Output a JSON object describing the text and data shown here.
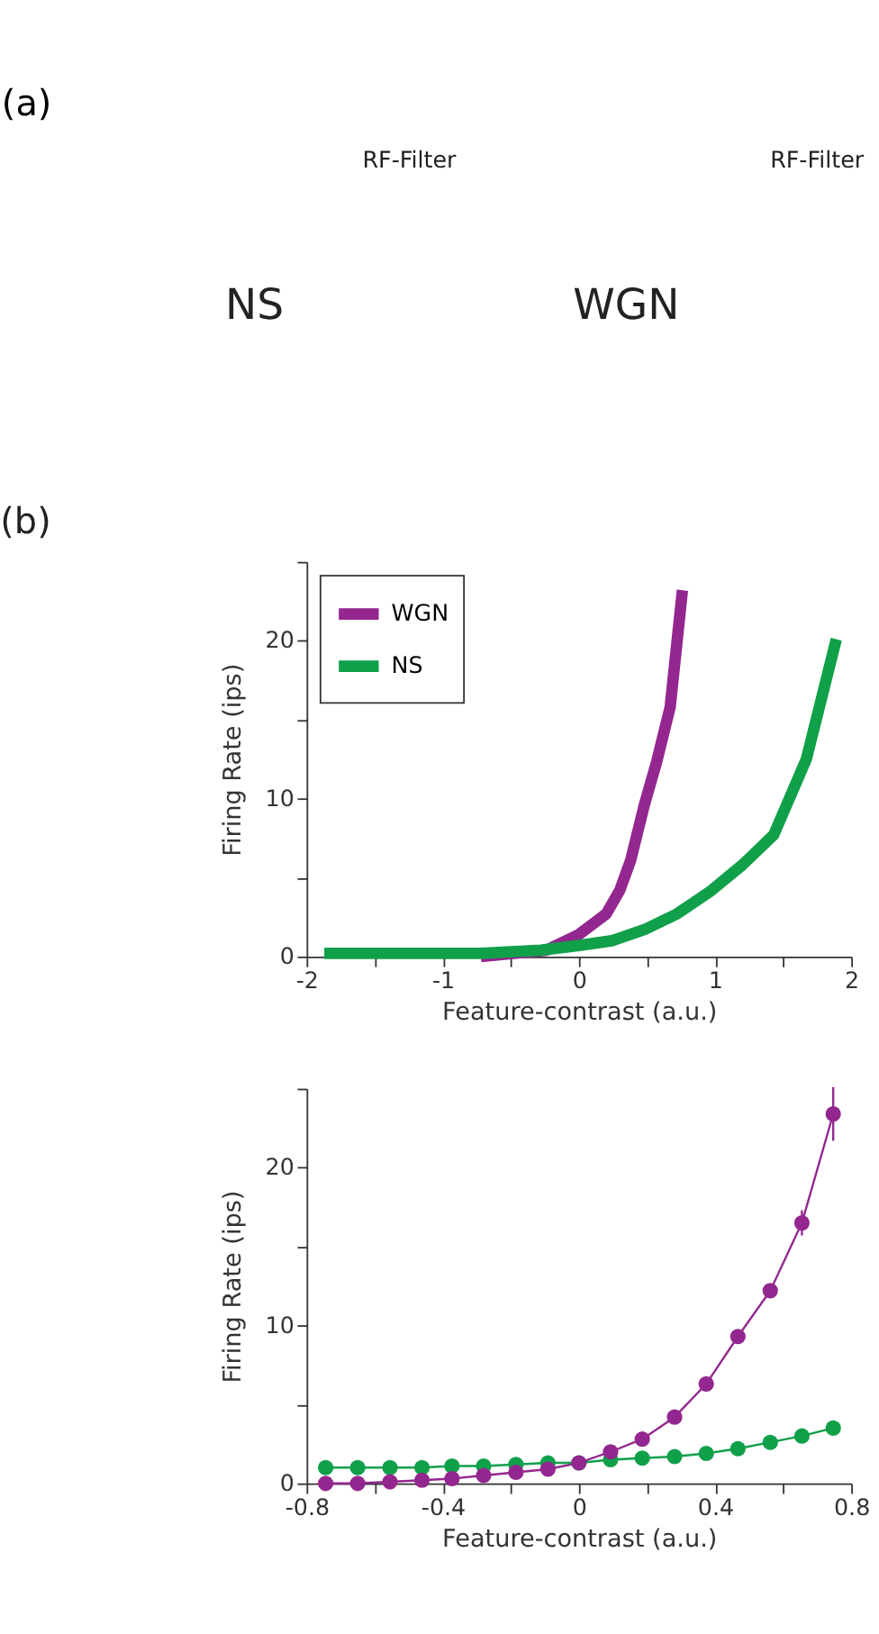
{
  "chart_data": [
    {
      "type": "other",
      "title": "(a)",
      "annotations": [
        "RF-Filter",
        "NS",
        "RF-Filter",
        "WGN"
      ]
    },
    {
      "type": "line",
      "title": "(b)",
      "xlabel": "Feature-contrast (a.u.)",
      "ylabel": "Firing Rate (ips)",
      "xlim": [
        -2,
        2
      ],
      "xticks": [
        -2,
        {
          "value": -1.5,
          "label": null
        },
        -1,
        {
          "value": -0.5,
          "label": null
        },
        0,
        {
          "value": 0.5,
          "label": null
        },
        1,
        {
          "value": 1.5,
          "label": null
        },
        2
      ],
      "ylim": [
        0,
        25
      ],
      "yticks": [
        0,
        {
          "value": 5,
          "label": null
        },
        10,
        {
          "value": 15,
          "label": null
        },
        20,
        {
          "value": 25,
          "label": null
        }
      ],
      "grid": false,
      "legend": "top left",
      "marker": "none",
      "line_style": "solid",
      "series": [
        {
          "name": "WGN",
          "color": "#93278f",
          "x": [
            -0.72,
            -0.48,
            -0.24,
            0,
            0.2,
            0.3,
            0.38,
            0.48,
            0.57,
            0.67,
            0.76
          ],
          "values": [
            0,
            0.2,
            0.4,
            1.4,
            2.7,
            4.2,
            6.1,
            9.6,
            12.3,
            15.8,
            23.2
          ]
        },
        {
          "name": "NS",
          "color": "#11a04a",
          "x": [
            -1.87,
            -0.72,
            -0.28,
            0,
            0.24,
            0.48,
            0.72,
            0.96,
            1.2,
            1.43,
            1.67,
            1.89
          ],
          "values": [
            0.2,
            0.2,
            0.4,
            0.7,
            1.0,
            1.7,
            2.7,
            4.1,
            5.8,
            7.7,
            12.5,
            20.1
          ]
        }
      ]
    },
    {
      "type": "line",
      "xlabel": "Feature-contrast (a.u.)",
      "ylabel": "Firing Rate (ips)",
      "xlim": [
        -0.8,
        0.8
      ],
      "xticks": [
        -0.8,
        {
          "value": -0.6,
          "label": null
        },
        -0.4,
        {
          "value": -0.2,
          "label": null
        },
        0,
        {
          "value": 0.2,
          "label": null
        },
        0.4,
        {
          "value": 0.6,
          "label": null
        },
        0.8
      ],
      "ylim": [
        0,
        25
      ],
      "yticks": [
        0,
        {
          "value": 5,
          "label": null
        },
        10,
        {
          "value": 15,
          "label": null
        },
        20,
        {
          "value": 25,
          "label": null
        }
      ],
      "grid": false,
      "legend": false,
      "marker": "circle",
      "line_style": "solid",
      "x": [
        -0.744,
        -0.65,
        -0.555,
        -0.461,
        -0.373,
        -0.28,
        -0.185,
        -0.091,
        0,
        0.093,
        0.186,
        0.281,
        0.374,
        0.467,
        0.562,
        0.655,
        0.747
      ],
      "series": [
        {
          "color": "#93278f",
          "values": [
            0,
            0,
            0.1,
            0.2,
            0.3,
            0.5,
            0.7,
            0.9,
            1.3,
            2.0,
            2.8,
            4.2,
            6.3,
            9.3,
            12.2,
            16.5,
            23.4
          ],
          "errors": [
            null,
            null,
            null,
            null,
            null,
            null,
            null,
            null,
            null,
            null,
            null,
            null,
            null,
            null,
            0.4,
            0.8,
            1.7
          ]
        },
        {
          "color": "#11a04a",
          "values": [
            1.0,
            1.0,
            1.0,
            1.0,
            1.1,
            1.1,
            1.2,
            1.3,
            1.3,
            1.5,
            1.6,
            1.7,
            1.9,
            2.2,
            2.6,
            3.0,
            3.5
          ]
        }
      ]
    }
  ]
}
